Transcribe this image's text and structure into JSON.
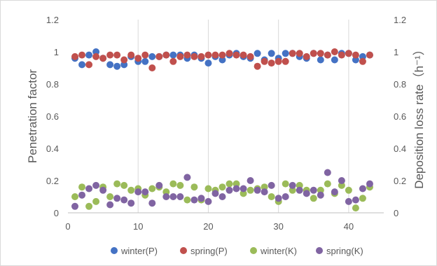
{
  "chart_data": {
    "type": "scatter",
    "xlabel": "",
    "ylabel": "Penetration factor",
    "ylabel_right": "Deposition loss rate（h⁻¹）",
    "xlim": [
      0,
      45
    ],
    "ylim": [
      0,
      1.2
    ],
    "ylim_right": [
      0,
      1.2
    ],
    "x_ticks": [
      "0",
      "10",
      "20",
      "30",
      "40"
    ],
    "y_ticks": [
      "0",
      "0.2",
      "0.4",
      "0.6",
      "0.8",
      "1",
      "1.2"
    ],
    "y_ticks_right": [
      "0",
      "0.2",
      "0.4",
      "0.6",
      "0.8",
      "1",
      "1.2"
    ],
    "grid": "vertical",
    "legend_position": "bottom",
    "series": [
      {
        "name": "winter(P)",
        "axis": "left",
        "color": "#4472c4",
        "x": [
          1,
          2,
          3,
          4,
          5,
          6,
          7,
          8,
          9,
          10,
          11,
          12,
          13,
          14,
          15,
          16,
          17,
          18,
          19,
          20,
          21,
          22,
          23,
          24,
          25,
          26,
          27,
          28,
          29,
          30,
          31,
          32,
          33,
          34,
          35,
          36,
          37,
          38,
          39,
          40,
          41,
          42,
          43
        ],
        "y": [
          0.96,
          0.92,
          0.98,
          1.0,
          0.96,
          0.92,
          0.91,
          0.92,
          0.97,
          0.94,
          0.94,
          0.97,
          0.97,
          0.98,
          0.98,
          0.98,
          0.96,
          0.98,
          0.96,
          0.93,
          0.97,
          0.95,
          0.98,
          0.99,
          0.97,
          0.96,
          0.99,
          0.95,
          0.99,
          0.96,
          0.99,
          0.99,
          0.97,
          0.96,
          0.99,
          0.95,
          0.98,
          0.95,
          0.99,
          0.99,
          0.95,
          0.97,
          0.98
        ]
      },
      {
        "name": "spring(P)",
        "axis": "left",
        "color": "#c0504d",
        "x": [
          1,
          2,
          3,
          4,
          5,
          6,
          7,
          8,
          9,
          10,
          11,
          12,
          13,
          14,
          15,
          16,
          17,
          18,
          19,
          20,
          21,
          22,
          23,
          24,
          25,
          26,
          27,
          28,
          29,
          30,
          31,
          32,
          33,
          34,
          35,
          36,
          37,
          38,
          39,
          40,
          41,
          42,
          43
        ],
        "y": [
          0.97,
          0.98,
          0.92,
          0.97,
          0.96,
          0.98,
          0.98,
          0.95,
          0.98,
          0.96,
          0.98,
          0.9,
          0.97,
          0.98,
          0.94,
          0.97,
          0.98,
          0.97,
          0.97,
          0.98,
          0.98,
          0.98,
          0.99,
          0.98,
          0.98,
          0.97,
          0.91,
          0.94,
          0.93,
          0.94,
          0.94,
          0.99,
          0.99,
          0.97,
          0.99,
          0.99,
          0.98,
          1.0,
          0.98,
          0.99,
          0.98,
          0.94,
          0.98
        ]
      },
      {
        "name": "winter(K)",
        "axis": "right",
        "color": "#9bbb59",
        "x": [
          1,
          2,
          3,
          4,
          5,
          6,
          7,
          8,
          9,
          10,
          11,
          12,
          13,
          14,
          15,
          16,
          17,
          18,
          19,
          20,
          21,
          22,
          23,
          24,
          25,
          26,
          27,
          28,
          29,
          30,
          31,
          32,
          33,
          34,
          35,
          36,
          37,
          38,
          39,
          40,
          41,
          42,
          43
        ],
        "y": [
          0.1,
          0.16,
          0.04,
          0.07,
          0.16,
          0.1,
          0.18,
          0.17,
          0.14,
          0.15,
          0.11,
          0.15,
          0.16,
          0.13,
          0.18,
          0.17,
          0.08,
          0.16,
          0.08,
          0.15,
          0.14,
          0.16,
          0.18,
          0.18,
          0.12,
          0.14,
          0.15,
          0.16,
          0.1,
          0.07,
          0.18,
          0.14,
          0.17,
          0.14,
          0.09,
          0.14,
          0.18,
          0.12,
          0.17,
          0.14,
          0.03,
          0.09,
          0.16
        ]
      },
      {
        "name": "spring(K)",
        "axis": "right",
        "color": "#8064a2",
        "x": [
          1,
          2,
          3,
          4,
          5,
          6,
          7,
          8,
          9,
          10,
          11,
          12,
          13,
          14,
          15,
          16,
          17,
          18,
          19,
          20,
          21,
          22,
          23,
          24,
          25,
          26,
          27,
          28,
          29,
          30,
          31,
          32,
          33,
          34,
          35,
          36,
          37,
          38,
          39,
          40,
          41,
          42,
          43
        ],
        "y": [
          0.04,
          0.11,
          0.15,
          0.17,
          0.14,
          0.05,
          0.09,
          0.08,
          0.06,
          0.13,
          0.13,
          0.06,
          0.17,
          0.1,
          0.1,
          0.1,
          0.22,
          0.08,
          0.09,
          0.07,
          0.12,
          0.1,
          0.14,
          0.15,
          0.15,
          0.2,
          0.14,
          0.13,
          0.17,
          0.09,
          0.1,
          0.17,
          0.14,
          0.12,
          0.14,
          0.11,
          0.25,
          0.13,
          0.2,
          0.07,
          0.08,
          0.15,
          0.18
        ]
      }
    ]
  }
}
